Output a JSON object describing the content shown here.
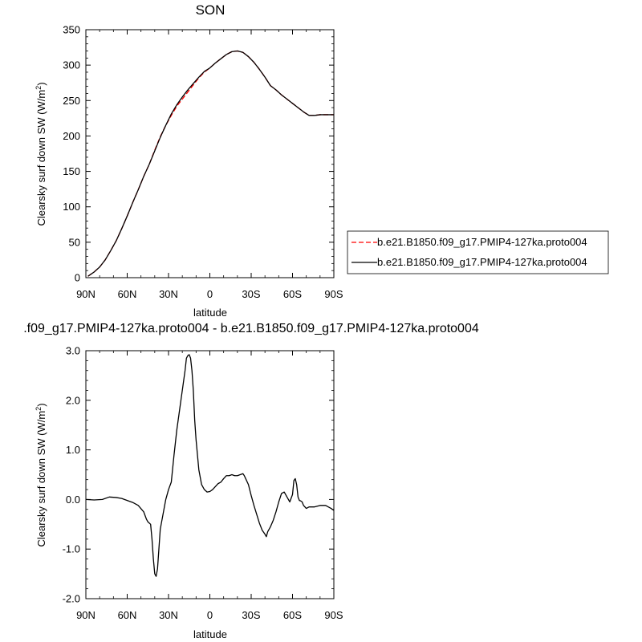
{
  "chart_data": [
    {
      "type": "line",
      "title": "SON",
      "xlabel": "latitude",
      "ylabel": "Clearsky surf down SW (W/m²)",
      "ylabel_main": "Clearsky surf down SW (W/m",
      "ylabel_sup": "2",
      "ylabel_end": ")",
      "x_domain": [
        90,
        -90
      ],
      "x_ticks": [
        90,
        60,
        30,
        0,
        -30,
        -60,
        -90
      ],
      "x_tick_labels": [
        "90N",
        "60N",
        "30N",
        "0",
        "30S",
        "60S",
        "90S"
      ],
      "ylim": [
        0,
        350
      ],
      "y_ticks": [
        0,
        50,
        100,
        150,
        200,
        250,
        300,
        350
      ],
      "y_tick_labels": [
        "0",
        "50",
        "100",
        "150",
        "200",
        "250",
        "300",
        "350"
      ],
      "legend": "right",
      "series": [
        {
          "name": "b.e21.B1850.f09_g17.PMIP4-127ka.proto004",
          "color": "#ff0000",
          "dash": "dashed",
          "x": [
            88.5,
            84,
            80,
            76,
            72,
            68,
            64,
            60,
            56,
            52,
            48,
            44,
            40,
            36,
            32,
            28,
            24,
            20,
            16,
            12,
            8,
            4,
            0,
            -4,
            -8,
            -12,
            -16,
            -20,
            -24,
            -28,
            -32,
            -36,
            -40,
            -44,
            -48,
            -52,
            -56,
            -60,
            -64,
            -68,
            -72,
            -76,
            -80,
            -84,
            -88,
            -90
          ],
          "y": [
            2,
            8,
            15,
            25,
            38,
            52,
            69,
            87,
            106,
            124,
            143,
            160,
            180,
            199,
            215,
            229,
            242,
            252,
            262,
            272,
            282,
            290,
            296,
            303,
            309,
            315,
            319,
            320,
            318,
            312,
            304,
            294,
            283,
            271,
            265,
            258,
            252,
            246,
            240,
            234,
            229,
            229,
            230,
            230,
            230,
            230
          ]
        },
        {
          "name": "b.e21.B1850.f09_g17.PMIP4-127ka.proto004",
          "color": "#000000",
          "dash": "solid",
          "x": [
            88.5,
            84,
            80,
            76,
            72,
            68,
            64,
            60,
            56,
            52,
            48,
            44,
            40,
            36,
            32,
            28,
            24,
            20,
            16,
            12,
            8,
            4,
            0,
            -4,
            -8,
            -12,
            -16,
            -20,
            -24,
            -28,
            -32,
            -36,
            -40,
            -44,
            -48,
            -52,
            -56,
            -60,
            -64,
            -68,
            -72,
            -76,
            -80,
            -84,
            -88,
            -90
          ],
          "y": [
            2,
            8,
            15,
            25,
            38,
            52,
            69,
            87,
            106,
            124,
            143,
            160,
            179,
            198,
            215,
            231,
            244,
            255,
            265,
            274,
            283,
            291,
            296,
            303,
            309,
            315,
            319,
            320,
            318,
            312,
            304,
            294,
            283,
            271,
            265,
            258,
            252,
            246,
            240,
            234,
            229,
            229,
            230,
            230,
            230,
            230
          ]
        }
      ]
    },
    {
      "type": "line",
      "title": ".f09_g17.PMIP4-127ka.proto004 - b.e21.B1850.f09_g17.PMIP4-127ka.proto004",
      "xlabel": "latitude",
      "ylabel": "Clearsky surf down SW (W/m²)",
      "ylabel_main": "Clearsky surf down SW (W/m",
      "ylabel_sup": "2",
      "ylabel_end": ")",
      "x_domain": [
        90,
        -90
      ],
      "x_ticks": [
        90,
        60,
        30,
        0,
        -30,
        -60,
        -90
      ],
      "x_tick_labels": [
        "90N",
        "60N",
        "30N",
        "0",
        "30S",
        "60S",
        "90S"
      ],
      "ylim": [
        -2.0,
        3.0
      ],
      "y_ticks": [
        -2,
        -1,
        0,
        1,
        2,
        3
      ],
      "y_tick_labels": [
        "-2.0",
        "-1.0",
        "0.0",
        "1.0",
        "2.0",
        "3.0"
      ],
      "series": [
        {
          "color": "#000000",
          "dash": "solid",
          "x": [
            90,
            84,
            78,
            73,
            68,
            64,
            60,
            56,
            52,
            48,
            46,
            45,
            43,
            42,
            41,
            40,
            39,
            38,
            36,
            34,
            32,
            30,
            28,
            26,
            24,
            22,
            20,
            18,
            17,
            16,
            15,
            14,
            13,
            12,
            11,
            10,
            9,
            8,
            6,
            4,
            2,
            0,
            -2,
            -4,
            -6,
            -8,
            -10,
            -12,
            -14,
            -16,
            -18,
            -20,
            -22,
            -24,
            -25,
            -26,
            -28,
            -30,
            -32,
            -34,
            -36,
            -38,
            -40,
            -41,
            -42,
            -44,
            -46,
            -48,
            -50,
            -52,
            -54,
            -56,
            -58,
            -60,
            -61,
            -62,
            -63,
            -64,
            -65,
            -66,
            -67,
            -68,
            -70,
            -72,
            -76,
            -80,
            -84,
            -88,
            -90
          ],
          "y": [
            0.0,
            -0.01,
            0.0,
            0.05,
            0.04,
            0.02,
            -0.02,
            -0.06,
            -0.12,
            -0.25,
            -0.4,
            -0.45,
            -0.5,
            -0.8,
            -1.2,
            -1.5,
            -1.55,
            -1.4,
            -0.6,
            -0.3,
            0.0,
            0.2,
            0.35,
            0.9,
            1.4,
            1.8,
            2.2,
            2.6,
            2.85,
            2.9,
            2.92,
            2.85,
            2.6,
            2.2,
            1.6,
            1.2,
            0.9,
            0.6,
            0.3,
            0.2,
            0.15,
            0.16,
            0.2,
            0.26,
            0.32,
            0.35,
            0.42,
            0.48,
            0.48,
            0.5,
            0.48,
            0.48,
            0.5,
            0.52,
            0.48,
            0.42,
            0.3,
            0.08,
            -0.12,
            -0.3,
            -0.48,
            -0.62,
            -0.7,
            -0.75,
            -0.65,
            -0.55,
            -0.42,
            -0.25,
            -0.05,
            0.12,
            0.15,
            0.05,
            -0.05,
            0.1,
            0.38,
            0.42,
            0.3,
            0.05,
            -0.02,
            -0.03,
            -0.05,
            -0.12,
            -0.18,
            -0.15,
            -0.15,
            -0.12,
            -0.12,
            -0.18,
            -0.22
          ]
        }
      ]
    }
  ]
}
